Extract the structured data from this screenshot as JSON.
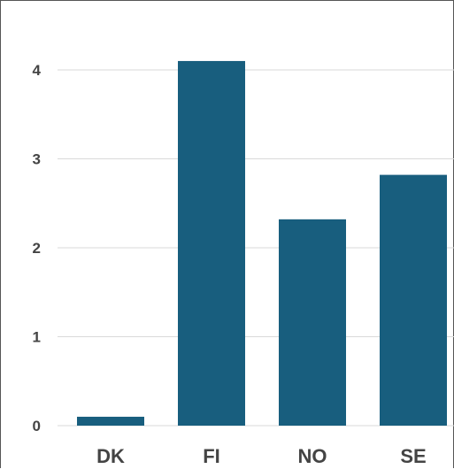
{
  "chart_data": {
    "type": "bar",
    "categories": [
      "DK",
      "FI",
      "NO",
      "SE"
    ],
    "values": [
      0.1,
      4.1,
      2.32,
      2.82
    ],
    "title": "",
    "xlabel": "",
    "ylabel": "",
    "ylim": [
      0,
      4.5
    ],
    "yticks": [
      0,
      1,
      2,
      3,
      4
    ],
    "grid": true,
    "legend": "none",
    "bar_color": "#185e7e"
  }
}
